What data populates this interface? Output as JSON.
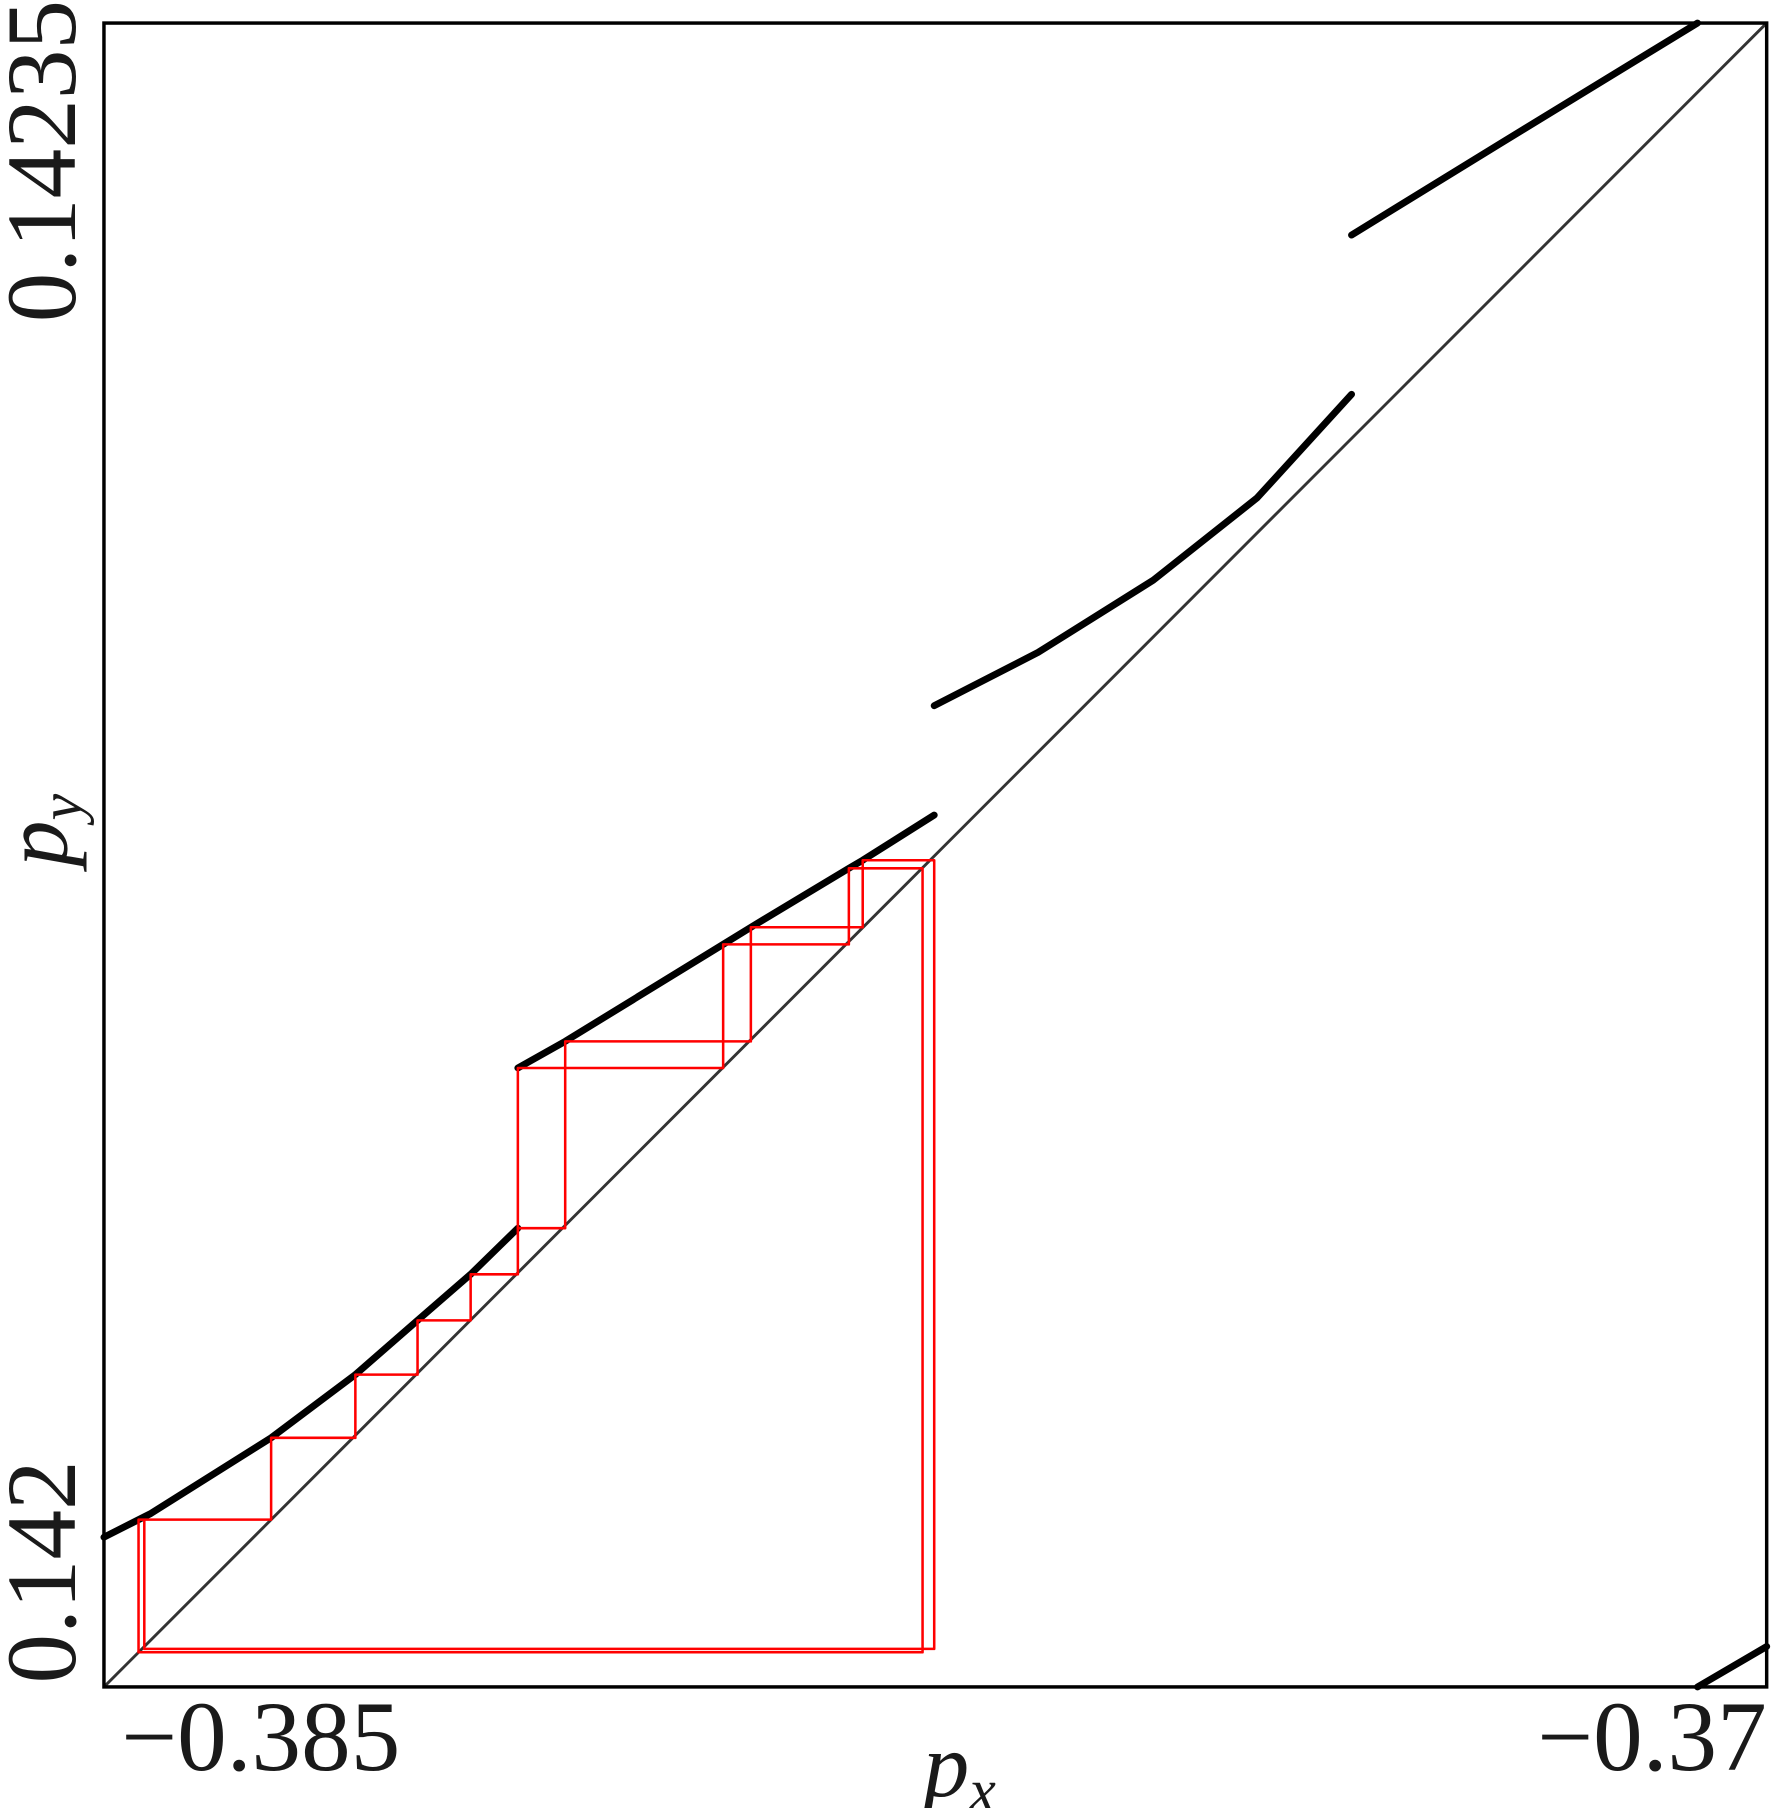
{
  "chart_data": {
    "type": "line",
    "xlabel": {
      "base": "p",
      "sub": "x"
    },
    "ylabel": {
      "base": "p",
      "sub": "y"
    },
    "xlim": [
      -0.385,
      -0.37
    ],
    "ylim": [
      0.142,
      0.14235
    ],
    "xticks": [
      {
        "value": -0.385,
        "label": "−0.385"
      },
      {
        "value": -0.37,
        "label": "−0.37"
      }
    ],
    "yticks": [
      0.142,
      0.14235
    ],
    "series": [
      {
        "color": "#000000",
        "x": [
          -0.385,
          -0.384584,
          -0.383492,
          -0.382732,
          -0.382171,
          -0.381692,
          -0.381266
        ],
        "values": [
          0.1420315,
          0.1420364,
          0.1420524,
          0.1420657,
          0.1420771,
          0.1420868,
          0.1420965
        ]
      },
      {
        "color": "#000000",
        "x": [
          -0.381266,
          -0.380839,
          -0.379414,
          -0.379164,
          -0.37828,
          -0.378155,
          -0.37751
        ],
        "values": [
          0.1421302,
          0.1421358,
          0.1421562,
          0.1421598,
          0.1421722,
          0.1421739,
          0.1421834
        ]
      },
      {
        "color": "#000000",
        "x": [
          -0.37751,
          -0.376574,
          -0.375534,
          -0.374598,
          -0.373745
        ],
        "values": [
          0.1422064,
          0.1422176,
          0.1422328,
          0.1422501,
          0.1422719
        ]
      },
      {
        "color": "#000000",
        "x": [
          -0.373745,
          -0.372414,
          -0.370624
        ],
        "values": [
          0.1423054,
          0.1423245,
          0.14235
        ]
      },
      {
        "color": "#000000",
        "x": [
          -0.370624,
          -0.37
        ],
        "values": [
          0.142,
          0.1420085
        ]
      },
      {
        "color": "#ff0000",
        "x": [
          -0.384688,
          -0.384688,
          -0.383492,
          -0.383492,
          -0.382732,
          -0.382732,
          -0.382171,
          -0.382171,
          -0.381692,
          -0.381692,
          -0.381266,
          -0.381266,
          -0.380839,
          -0.380839,
          -0.379164,
          -0.379164,
          -0.378155,
          -0.378155,
          -0.37751,
          -0.37751,
          -0.384636,
          -0.384636
        ],
        "values": [
          0.1420073,
          0.1420352,
          0.1420352,
          0.1420524,
          0.1420524,
          0.1420657,
          0.1420657,
          0.1420771,
          0.1420771,
          0.1420868,
          0.1420868,
          0.1420965,
          0.1420965,
          0.1421358,
          0.1421358,
          0.1421598,
          0.1421598,
          0.1421739,
          0.1421739,
          0.142008,
          0.142008,
          0.1420352
        ]
      },
      {
        "color": "#ff0000",
        "x": [
          -0.381266,
          -0.381266,
          -0.379414,
          -0.379414,
          -0.37828,
          -0.37828,
          -0.377615,
          -0.377615,
          -0.384688
        ],
        "values": [
          0.1420965,
          0.1421302,
          0.1421302,
          0.1421562,
          0.1421562,
          0.1421722,
          0.1421722,
          0.1420073,
          0.1420073
        ]
      }
    ]
  }
}
